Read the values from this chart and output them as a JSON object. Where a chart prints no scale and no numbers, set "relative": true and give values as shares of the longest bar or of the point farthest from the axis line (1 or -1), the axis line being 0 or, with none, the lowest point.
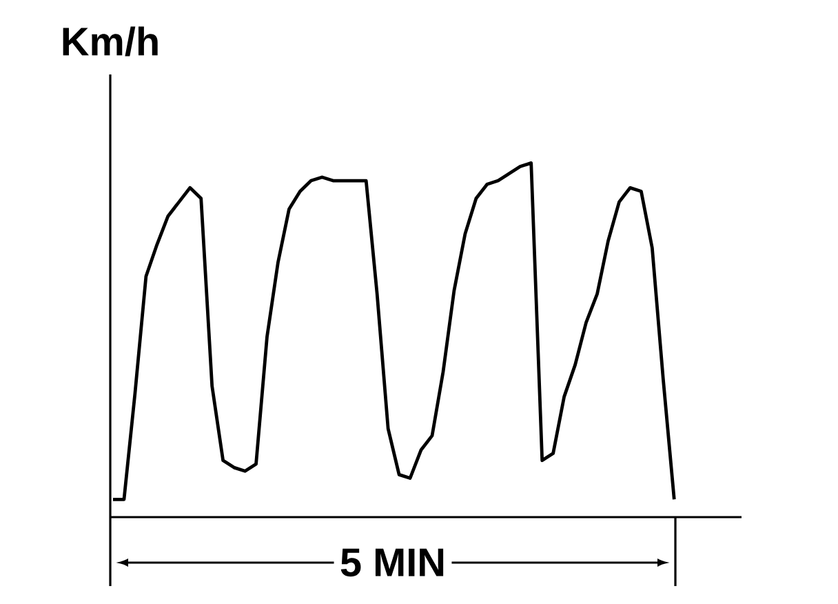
{
  "chart_data": {
    "type": "line",
    "relative": true,
    "ylabel": "Km/h",
    "annotations": [
      "5 MIN"
    ],
    "marker": "none",
    "line_style": "solid",
    "categories": [
      null,
      null,
      null,
      null,
      null,
      null,
      null,
      null,
      null,
      null,
      null,
      null,
      null,
      null,
      null,
      null,
      null,
      null,
      null,
      null,
      null,
      null,
      null,
      null,
      null,
      null,
      null,
      null,
      null,
      null,
      null,
      null,
      null,
      null,
      null,
      null,
      null,
      null,
      null,
      null,
      null,
      null,
      null,
      null,
      null,
      null,
      null,
      null,
      null,
      null,
      null,
      null
    ],
    "series": [
      {
        "color": "#000000",
        "values": [
          0.05,
          0.05,
          0.35,
          0.68,
          0.77,
          0.85,
          0.89,
          0.93,
          0.9,
          0.37,
          0.16,
          0.14,
          0.13,
          0.15,
          0.51,
          0.72,
          0.87,
          0.92,
          0.95,
          0.96,
          0.95,
          0.95,
          0.95,
          0.95,
          0.63,
          0.25,
          0.12,
          0.11,
          0.19,
          0.23,
          0.41,
          0.64,
          0.8,
          0.9,
          0.94,
          0.95,
          0.97,
          0.99,
          1,
          0.16,
          0.18,
          0.34,
          0.43,
          0.55,
          0.63,
          0.78,
          0.89,
          0.93,
          0.92,
          0.76,
          0.39,
          0.05
        ]
      }
    ]
  }
}
